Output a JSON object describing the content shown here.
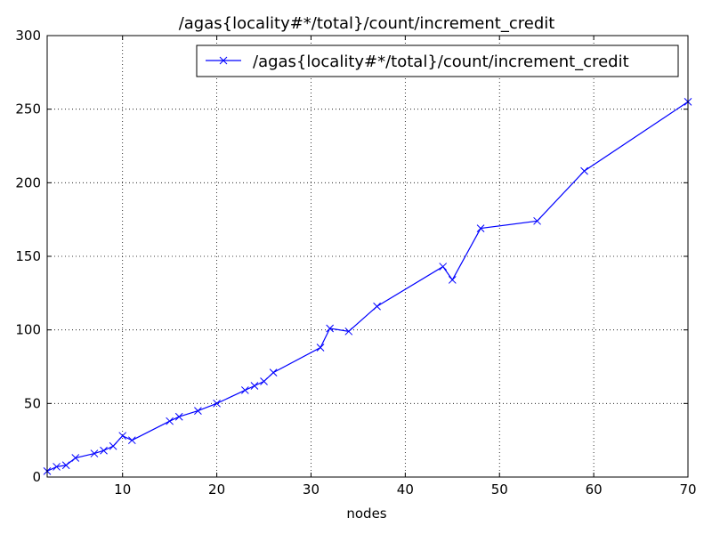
{
  "chart_data": {
    "type": "line",
    "title": "/agas{locality#*/total}/count/increment_credit",
    "xlabel": "nodes",
    "ylabel": "",
    "xlim": [
      2,
      70
    ],
    "ylim": [
      0,
      300
    ],
    "xticks": [
      10,
      20,
      30,
      40,
      50,
      60,
      70
    ],
    "yticks": [
      0,
      50,
      100,
      150,
      200,
      250,
      300
    ],
    "grid": true,
    "legend_position": "top-right",
    "series": [
      {
        "name": "/agas{locality#*/total}/count/increment_credit",
        "color": "#0000ff",
        "marker": "x",
        "x": [
          2,
          3,
          4,
          5,
          7,
          8,
          9,
          10,
          11,
          15,
          16,
          18,
          20,
          23,
          24,
          25,
          26,
          31,
          32,
          34,
          37,
          44,
          45,
          48,
          54,
          59,
          70
        ],
        "y": [
          4,
          7,
          8,
          13,
          16,
          18,
          21,
          28,
          25,
          38,
          41,
          45,
          50,
          59,
          62,
          65,
          71,
          88,
          101,
          99,
          116,
          143,
          134,
          169,
          174,
          208,
          255
        ]
      }
    ]
  }
}
